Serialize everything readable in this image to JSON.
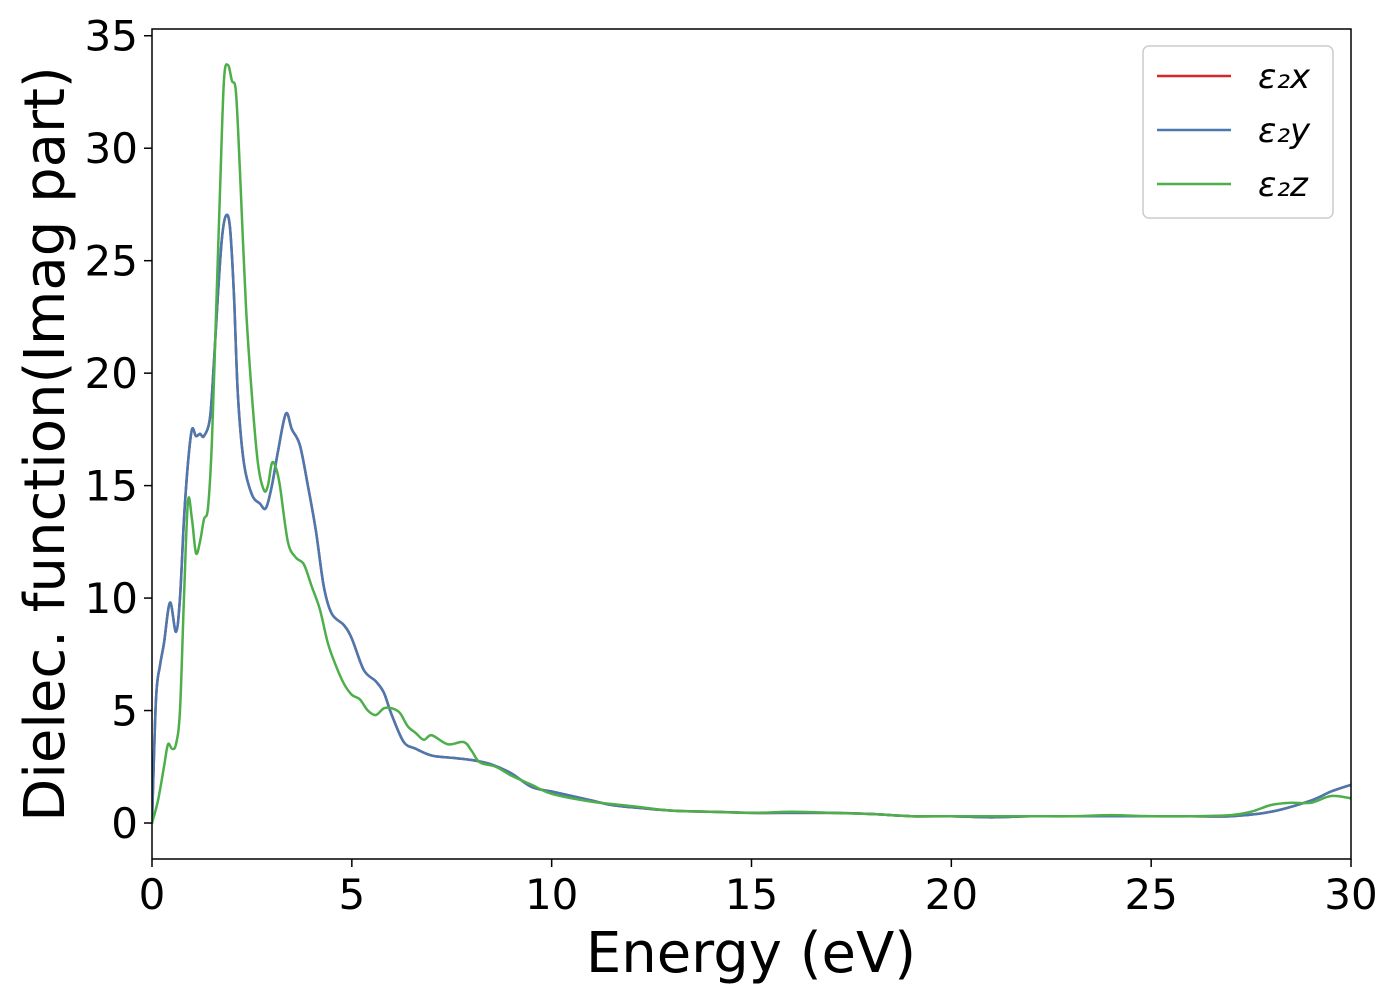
{
  "chart_data": {
    "type": "line",
    "title": "",
    "xlabel": "Energy (eV)",
    "ylabel": "Dielec. function(Imag part)",
    "xlim": [
      0,
      30
    ],
    "ylim": [
      -1.6,
      35.3
    ],
    "xticks": [
      0,
      5,
      10,
      15,
      20,
      25,
      30
    ],
    "yticks": [
      0,
      5,
      10,
      15,
      20,
      25,
      30,
      35
    ],
    "grid": false,
    "legend_position": "top-right",
    "series": [
      {
        "name": "ε₂x",
        "color": "#d62728",
        "x": [
          0.0,
          0.1,
          0.2,
          0.3,
          0.45,
          0.6,
          0.7,
          0.8,
          0.9,
          1.0,
          1.1,
          1.2,
          1.3,
          1.45,
          1.55,
          1.65,
          1.75,
          1.85,
          1.95,
          2.05,
          2.15,
          2.3,
          2.5,
          2.7,
          2.85,
          3.0,
          3.15,
          3.35,
          3.5,
          3.7,
          3.9,
          4.1,
          4.3,
          4.5,
          4.8,
          5.0,
          5.3,
          5.6,
          5.8,
          6.0,
          6.3,
          6.6,
          7.0,
          7.5,
          8.0,
          8.5,
          9.0,
          9.5,
          10.0,
          10.5,
          11.0,
          11.5,
          12.0,
          13.0,
          14.0,
          15.0,
          16.0,
          17.0,
          18.0,
          19.0,
          20.0,
          21.0,
          22.0,
          23.0,
          24.0,
          25.0,
          26.0,
          27.0,
          28.0,
          29.0,
          29.5,
          30.0
        ],
        "y": [
          0.0,
          5.5,
          7.0,
          8.0,
          9.8,
          8.5,
          10.0,
          13.5,
          16.0,
          17.5,
          17.2,
          17.3,
          17.2,
          18.0,
          20.5,
          23.5,
          26.0,
          27.0,
          26.5,
          23.5,
          19.0,
          16.0,
          14.6,
          14.2,
          14.0,
          15.0,
          16.5,
          18.2,
          17.5,
          16.8,
          15.0,
          13.0,
          10.5,
          9.3,
          8.8,
          8.2,
          6.8,
          6.3,
          5.8,
          4.8,
          3.6,
          3.3,
          3.0,
          2.9,
          2.8,
          2.6,
          2.2,
          1.6,
          1.4,
          1.2,
          1.0,
          0.8,
          0.7,
          0.55,
          0.5,
          0.45,
          0.45,
          0.45,
          0.4,
          0.3,
          0.3,
          0.25,
          0.3,
          0.3,
          0.3,
          0.3,
          0.3,
          0.3,
          0.5,
          1.0,
          1.4,
          1.7
        ]
      },
      {
        "name": "ε₂y",
        "color": "#4a78b0",
        "x": [
          0.0,
          0.1,
          0.2,
          0.3,
          0.45,
          0.6,
          0.7,
          0.8,
          0.9,
          1.0,
          1.1,
          1.2,
          1.3,
          1.45,
          1.55,
          1.65,
          1.75,
          1.85,
          1.95,
          2.05,
          2.15,
          2.3,
          2.5,
          2.7,
          2.85,
          3.0,
          3.15,
          3.35,
          3.5,
          3.7,
          3.9,
          4.1,
          4.3,
          4.5,
          4.8,
          5.0,
          5.3,
          5.6,
          5.8,
          6.0,
          6.3,
          6.6,
          7.0,
          7.5,
          8.0,
          8.5,
          9.0,
          9.5,
          10.0,
          10.5,
          11.0,
          11.5,
          12.0,
          13.0,
          14.0,
          15.0,
          16.0,
          17.0,
          18.0,
          19.0,
          20.0,
          21.0,
          22.0,
          23.0,
          24.0,
          25.0,
          26.0,
          27.0,
          28.0,
          29.0,
          29.5,
          30.0
        ],
        "y": [
          0.0,
          5.5,
          7.0,
          8.0,
          9.8,
          8.5,
          10.0,
          13.5,
          16.0,
          17.5,
          17.2,
          17.3,
          17.2,
          18.0,
          20.5,
          23.5,
          26.0,
          27.0,
          26.5,
          23.5,
          19.0,
          16.0,
          14.6,
          14.2,
          14.0,
          15.0,
          16.5,
          18.2,
          17.5,
          16.8,
          15.0,
          13.0,
          10.5,
          9.3,
          8.8,
          8.2,
          6.8,
          6.3,
          5.8,
          4.8,
          3.6,
          3.3,
          3.0,
          2.9,
          2.8,
          2.6,
          2.2,
          1.6,
          1.4,
          1.2,
          1.0,
          0.8,
          0.7,
          0.55,
          0.5,
          0.45,
          0.45,
          0.45,
          0.4,
          0.3,
          0.3,
          0.25,
          0.3,
          0.3,
          0.3,
          0.3,
          0.3,
          0.3,
          0.5,
          1.0,
          1.4,
          1.7
        ]
      },
      {
        "name": "ε₂z",
        "color": "#4daf4a",
        "x": [
          0.0,
          0.15,
          0.3,
          0.4,
          0.5,
          0.6,
          0.7,
          0.8,
          0.9,
          1.0,
          1.1,
          1.2,
          1.3,
          1.4,
          1.5,
          1.6,
          1.7,
          1.8,
          1.9,
          2.0,
          2.1,
          2.2,
          2.35,
          2.5,
          2.65,
          2.8,
          2.9,
          3.0,
          3.1,
          3.2,
          3.4,
          3.6,
          3.8,
          4.0,
          4.2,
          4.4,
          4.6,
          4.8,
          5.0,
          5.2,
          5.4,
          5.6,
          5.8,
          6.0,
          6.2,
          6.4,
          6.6,
          6.8,
          7.0,
          7.4,
          7.8,
          8.0,
          8.2,
          8.6,
          9.0,
          9.5,
          10.0,
          11.0,
          12.0,
          13.0,
          14.0,
          15.0,
          16.0,
          17.0,
          18.0,
          19.0,
          20.0,
          21.0,
          22.0,
          23.0,
          24.0,
          25.0,
          26.0,
          27.0,
          27.5,
          28.0,
          28.5,
          29.0,
          29.5,
          30.0
        ],
        "y": [
          0.0,
          1.0,
          2.5,
          3.5,
          3.3,
          3.5,
          5.0,
          10.0,
          14.3,
          13.5,
          12.0,
          12.5,
          13.5,
          14.0,
          17.0,
          22.5,
          28.0,
          33.0,
          33.7,
          33.0,
          32.5,
          29.0,
          23.0,
          19.0,
          16.0,
          14.8,
          15.0,
          16.0,
          15.8,
          15.0,
          12.5,
          11.8,
          11.5,
          10.5,
          9.5,
          8.0,
          7.0,
          6.2,
          5.7,
          5.5,
          5.0,
          4.8,
          5.1,
          5.1,
          4.9,
          4.3,
          4.0,
          3.7,
          3.9,
          3.5,
          3.6,
          3.2,
          2.7,
          2.5,
          2.1,
          1.7,
          1.3,
          0.95,
          0.75,
          0.55,
          0.5,
          0.45,
          0.5,
          0.45,
          0.4,
          0.3,
          0.3,
          0.3,
          0.3,
          0.3,
          0.35,
          0.3,
          0.3,
          0.35,
          0.5,
          0.8,
          0.9,
          0.9,
          1.2,
          1.1
        ]
      }
    ]
  }
}
